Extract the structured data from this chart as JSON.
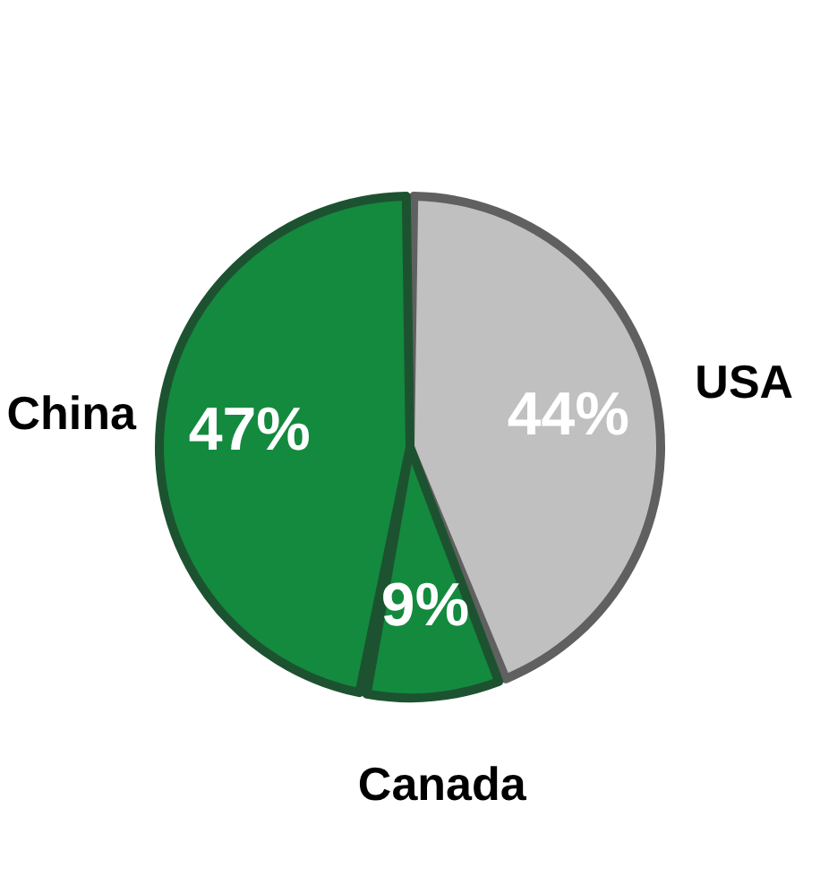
{
  "chart_data": {
    "type": "pie",
    "categories": [
      "USA",
      "Canada",
      "China"
    ],
    "values": [
      44,
      9,
      47
    ],
    "colors": [
      "#c0c0c0",
      "#138a3e",
      "#138a3e"
    ],
    "value_labels": [
      "44%",
      "9%",
      "47%"
    ]
  }
}
